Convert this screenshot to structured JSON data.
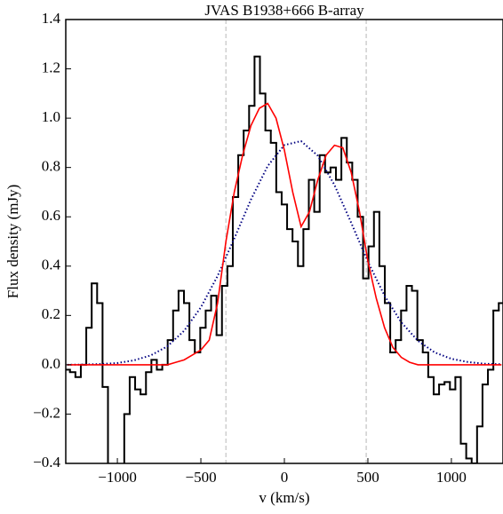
{
  "chart_data": {
    "type": "line",
    "title": "JVAS B1938+666 B-array",
    "x_label": "v (km/s)",
    "y_label": "Flux density (mJy)",
    "xlim": [
      -1309,
      1309
    ],
    "ylim": [
      -0.4,
      1.4
    ],
    "xticks": [
      {
        "value": -1000,
        "label": "−1000"
      },
      {
        "value": -500,
        "label": "−500"
      },
      0,
      500,
      1000
    ],
    "yticks": [
      {
        "value": -0.4,
        "label": "−0.4"
      },
      {
        "value": -0.2,
        "label": "−0.2"
      },
      {
        "value": 0,
        "label": "0.0"
      },
      0.2,
      0.4,
      0.6,
      0.8,
      {
        "value": 1,
        "label": "1.0"
      },
      1.2,
      1.4
    ],
    "vlines": [
      -350,
      490
    ],
    "vline_color": "#c8c8c8",
    "series": [
      {
        "style": "steps",
        "color": "#000000",
        "x": [
          -1300,
          -1267.5,
          -1235,
          -1202.5,
          -1170,
          -1137.5,
          -1105,
          -1072.5,
          -1040,
          -1007.5,
          -975,
          -942.5,
          -910,
          -877.5,
          -845,
          -812.5,
          -780,
          -747.5,
          -715,
          -682.5,
          -650,
          -617.5,
          -585,
          -552.5,
          -520,
          -487.5,
          -455,
          -422.5,
          -390,
          -357.5,
          -325,
          -292.5,
          -260,
          -227.5,
          -195,
          -162.5,
          -130,
          -97.5,
          -65,
          -32.5,
          0,
          32.5,
          65,
          97.5,
          130,
          162.5,
          195,
          227.5,
          260,
          292.5,
          325,
          357.5,
          390,
          422.5,
          455,
          487.5,
          520,
          552.5,
          585,
          617.5,
          650,
          682.5,
          715,
          747.5,
          780,
          812.5,
          845,
          877.5,
          910,
          942.5,
          975,
          1007.5,
          1040,
          1072.5,
          1105,
          1137.5,
          1170,
          1202.5,
          1235,
          1267.5,
          1300
        ],
        "values": [
          -0.02,
          -0.03,
          -0.05,
          0.0,
          0.15,
          0.33,
          0.25,
          -0.09,
          -0.45,
          -0.45,
          -0.45,
          -0.2,
          -0.05,
          -0.1,
          -0.12,
          -0.03,
          0.02,
          -0.02,
          0.0,
          0.1,
          0.22,
          0.3,
          0.25,
          0.1,
          0.05,
          0.15,
          0.22,
          0.28,
          0.12,
          0.32,
          0.4,
          0.68,
          0.85,
          0.95,
          1.05,
          1.25,
          1.1,
          0.95,
          0.9,
          0.7,
          0.65,
          0.55,
          0.5,
          0.4,
          0.55,
          0.75,
          0.62,
          0.85,
          0.78,
          0.8,
          0.75,
          0.92,
          0.82,
          0.75,
          0.6,
          0.35,
          0.48,
          0.62,
          0.4,
          0.25,
          0.05,
          0.1,
          0.22,
          0.32,
          0.3,
          0.1,
          0.05,
          -0.05,
          -0.12,
          -0.08,
          -0.07,
          -0.1,
          -0.05,
          -0.32,
          -0.38,
          -0.4,
          -0.25,
          -0.08,
          -0.02,
          0.22,
          0.25
        ]
      },
      {
        "style": "dotted",
        "color": "#000080",
        "x": [
          -1300,
          -1200,
          -1100,
          -1000,
          -900,
          -800,
          -700,
          -600,
          -500,
          -400,
          -300,
          -200,
          -100,
          0,
          100,
          200,
          300,
          400,
          500,
          600,
          700,
          800,
          900,
          1000,
          1100,
          1200,
          1300
        ],
        "values": [
          0.0,
          0.001,
          0.003,
          0.007,
          0.018,
          0.038,
          0.075,
          0.138,
          0.233,
          0.36,
          0.512,
          0.67,
          0.806,
          0.891,
          0.907,
          0.848,
          0.729,
          0.576,
          0.418,
          0.28,
          0.172,
          0.097,
          0.05,
          0.024,
          0.011,
          0.004,
          0.002
        ]
      },
      {
        "style": "solid",
        "color": "#ff0000",
        "x": [
          -1300,
          -1250,
          -1200,
          -1150,
          -1100,
          -1050,
          -1000,
          -950,
          -900,
          -850,
          -800,
          -750,
          -700,
          -650,
          -600,
          -550,
          -500,
          -450,
          -400,
          -350,
          -300,
          -250,
          -200,
          -150,
          -100,
          -50,
          0,
          50,
          100,
          150,
          200,
          250,
          300,
          350,
          400,
          450,
          500,
          550,
          600,
          650,
          700,
          750,
          800,
          850,
          900,
          950,
          1000,
          1050,
          1100,
          1150,
          1200,
          1250,
          1300
        ],
        "values": [
          0,
          0,
          0,
          0,
          0,
          0,
          0,
          0,
          0,
          0,
          0,
          0,
          0,
          0.01,
          0.02,
          0.04,
          0.06,
          0.1,
          0.25,
          0.5,
          0.7,
          0.85,
          0.97,
          1.04,
          1.06,
          1.0,
          0.87,
          0.7,
          0.56,
          0.62,
          0.75,
          0.85,
          0.89,
          0.88,
          0.78,
          0.62,
          0.42,
          0.27,
          0.15,
          0.07,
          0.03,
          0.01,
          0,
          0,
          0,
          0,
          0,
          0,
          0,
          0,
          0,
          0,
          0
        ]
      }
    ]
  }
}
